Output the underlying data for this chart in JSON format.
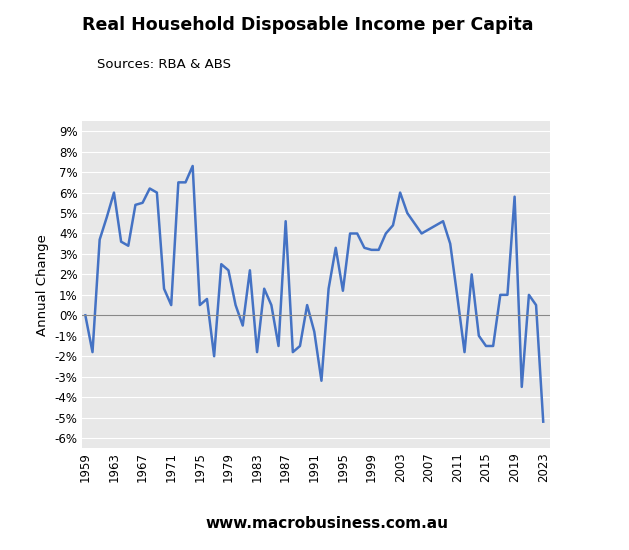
{
  "title": "Real Household Disposable Income per Capita",
  "subtitle": "Sources: RBA & ABS",
  "ylabel": "Annual Change",
  "website": "www.macrobusiness.com.au",
  "line_color": "#4472C4",
  "background_color": "#E8E8E8",
  "logo_color": "#CC0000",
  "ylim": [
    -0.065,
    0.095
  ],
  "years": [
    1959,
    1960,
    1961,
    1962,
    1963,
    1964,
    1965,
    1966,
    1967,
    1968,
    1969,
    1970,
    1971,
    1972,
    1973,
    1974,
    1975,
    1976,
    1977,
    1978,
    1979,
    1980,
    1981,
    1982,
    1983,
    1984,
    1985,
    1986,
    1987,
    1988,
    1989,
    1990,
    1991,
    1992,
    1993,
    1994,
    1995,
    1996,
    1997,
    1998,
    1999,
    2000,
    2001,
    2002,
    2003,
    2004,
    2005,
    2006,
    2007,
    2008,
    2009,
    2010,
    2011,
    2012,
    2013,
    2014,
    2015,
    2016,
    2017,
    2018,
    2019,
    2020,
    2021,
    2022,
    2023
  ],
  "values": [
    0.0,
    -0.018,
    0.037,
    0.048,
    0.06,
    0.036,
    0.034,
    0.054,
    0.055,
    0.062,
    0.06,
    0.013,
    0.005,
    0.065,
    0.065,
    0.073,
    0.005,
    0.008,
    -0.02,
    0.025,
    0.022,
    0.005,
    -0.005,
    0.022,
    -0.018,
    0.013,
    0.005,
    -0.015,
    0.046,
    -0.018,
    -0.015,
    0.005,
    -0.008,
    -0.032,
    0.013,
    0.033,
    0.012,
    0.04,
    0.04,
    0.033,
    0.032,
    0.032,
    0.04,
    0.044,
    0.06,
    0.05,
    0.045,
    0.04,
    0.042,
    0.044,
    0.046,
    0.035,
    0.009,
    -0.018,
    0.02,
    -0.01,
    -0.015,
    -0.015,
    0.01,
    0.01,
    0.058,
    -0.035,
    0.01,
    0.005,
    -0.052
  ],
  "yticks": [
    -0.06,
    -0.05,
    -0.04,
    -0.03,
    -0.02,
    -0.01,
    0.0,
    0.01,
    0.02,
    0.03,
    0.04,
    0.05,
    0.06,
    0.07,
    0.08,
    0.09
  ],
  "xticks": [
    1959,
    1963,
    1967,
    1971,
    1975,
    1979,
    1983,
    1987,
    1991,
    1995,
    1999,
    2003,
    2007,
    2011,
    2015,
    2019,
    2023
  ]
}
